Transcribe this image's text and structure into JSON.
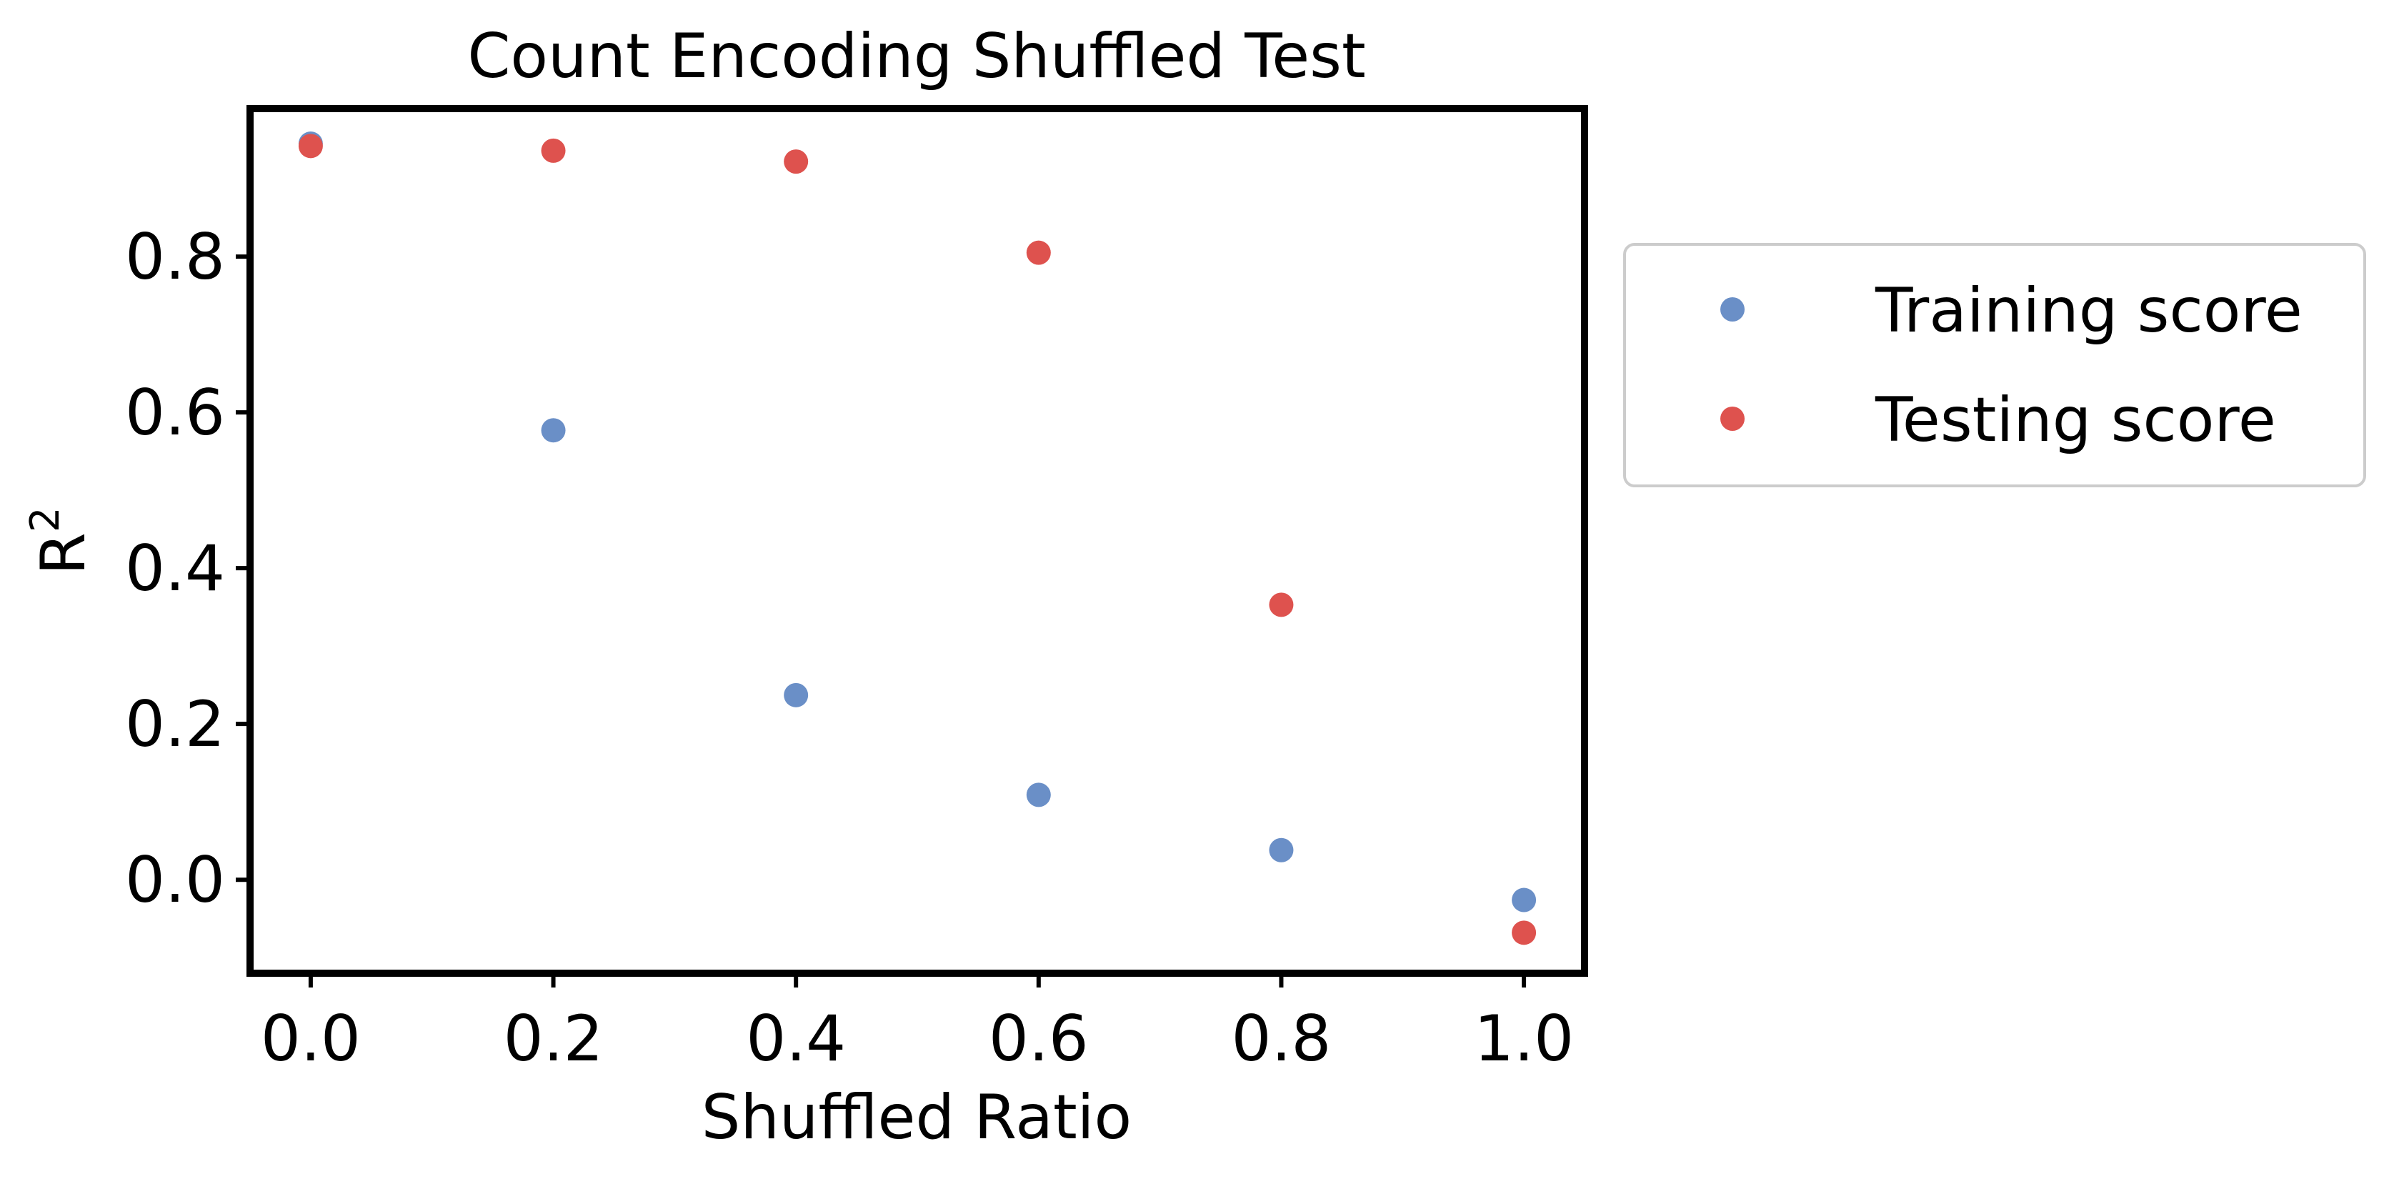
{
  "chart_data": {
    "type": "scatter",
    "title": "Count Encoding Shuffled Test",
    "xlabel": "Shuffled Ratio",
    "ylabel": "R",
    "ylabel_superscript": "2",
    "xlim": [
      -0.05,
      1.05
    ],
    "ylim": [
      -0.12,
      0.99
    ],
    "x_ticks": [
      {
        "value": 0.0,
        "label": "0.0"
      },
      {
        "value": 0.2,
        "label": "0.2"
      },
      {
        "value": 0.4,
        "label": "0.4"
      },
      {
        "value": 0.6,
        "label": "0.6"
      },
      {
        "value": 0.8,
        "label": "0.8"
      },
      {
        "value": 1.0,
        "label": "1.0"
      }
    ],
    "y_ticks": [
      {
        "value": 0.0,
        "label": "0.0"
      },
      {
        "value": 0.2,
        "label": "0.2"
      },
      {
        "value": 0.4,
        "label": "0.4"
      },
      {
        "value": 0.6,
        "label": "0.6"
      },
      {
        "value": 0.8,
        "label": "0.8"
      }
    ],
    "grid": false,
    "legend_position": "outside-right",
    "series": [
      {
        "name": "Training score",
        "color": "#6a8fc7",
        "points": [
          {
            "x": 0.0,
            "y": 0.945
          },
          {
            "x": 0.2,
            "y": 0.577
          },
          {
            "x": 0.4,
            "y": 0.237
          },
          {
            "x": 0.6,
            "y": 0.109
          },
          {
            "x": 0.8,
            "y": 0.038
          },
          {
            "x": 1.0,
            "y": -0.026
          }
        ]
      },
      {
        "name": "Testing score",
        "color": "#de524e",
        "points": [
          {
            "x": 0.0,
            "y": 0.942
          },
          {
            "x": 0.2,
            "y": 0.936
          },
          {
            "x": 0.4,
            "y": 0.922
          },
          {
            "x": 0.6,
            "y": 0.805
          },
          {
            "x": 0.8,
            "y": 0.353
          },
          {
            "x": 1.0,
            "y": -0.068
          }
        ]
      }
    ]
  }
}
